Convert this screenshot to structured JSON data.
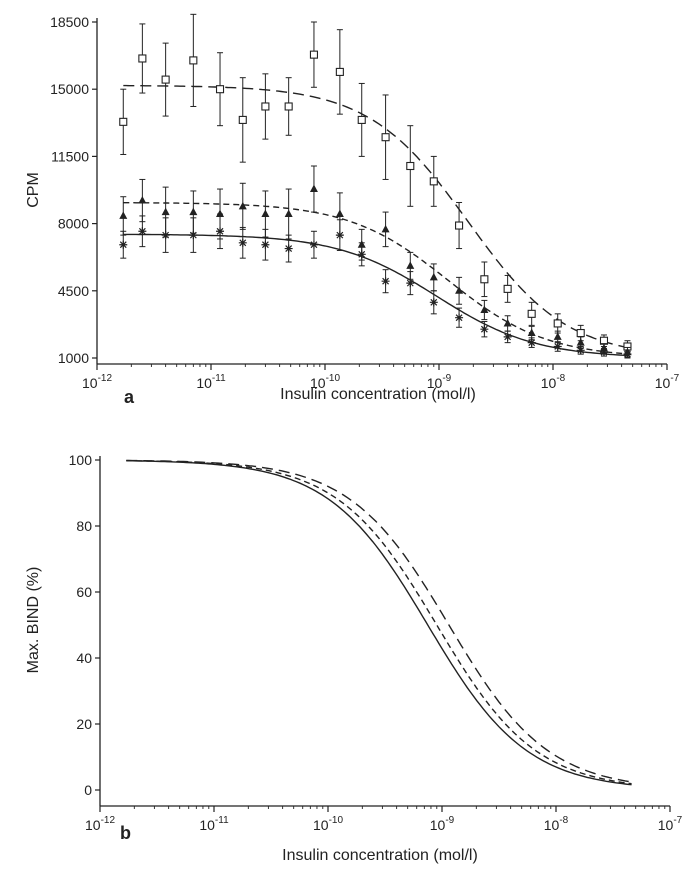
{
  "chart_data": [
    {
      "panel": "a",
      "type": "line",
      "xlabel": "Insulin concentration (mol/l)",
      "ylabel": "CPM",
      "xscale": "log",
      "xlim": [
        1e-12,
        1e-07
      ],
      "ylim": [
        1000,
        18500
      ],
      "xticks": [
        {
          "base": "10",
          "exp": "-12"
        },
        {
          "base": "10",
          "exp": "-11"
        },
        {
          "base": "10",
          "exp": "-10"
        },
        {
          "base": "10",
          "exp": "-9"
        },
        {
          "base": "10",
          "exp": "-8"
        },
        {
          "base": "10",
          "exp": "-7"
        }
      ],
      "yticks": [
        "1000",
        "4500",
        "8000",
        "11500",
        "15000",
        "18500"
      ],
      "series": [
        {
          "marker": "square",
          "line_style": "long-dash",
          "points": [
            {
              "x": 1.7e-12,
              "y": 13300,
              "err": 1700
            },
            {
              "x": 2.5e-12,
              "y": 16600,
              "err": 1800
            },
            {
              "x": 4e-12,
              "y": 15500,
              "err": 1900
            },
            {
              "x": 7e-12,
              "y": 16500,
              "err": 2400
            },
            {
              "x": 1.2e-11,
              "y": 15000,
              "err": 1900
            },
            {
              "x": 1.9e-11,
              "y": 13400,
              "err": 2200
            },
            {
              "x": 3e-11,
              "y": 14100,
              "err": 1700
            },
            {
              "x": 4.8e-11,
              "y": 14100,
              "err": 1500
            },
            {
              "x": 8e-11,
              "y": 16800,
              "err": 1700
            },
            {
              "x": 1.35e-10,
              "y": 15900,
              "err": 2200
            },
            {
              "x": 2.1e-10,
              "y": 13400,
              "err": 1900
            },
            {
              "x": 3.4e-10,
              "y": 12500,
              "err": 2200
            },
            {
              "x": 5.6e-10,
              "y": 11000,
              "err": 2100
            },
            {
              "x": 9e-10,
              "y": 10200,
              "err": 1300
            },
            {
              "x": 1.5e-09,
              "y": 7900,
              "err": 1200
            },
            {
              "x": 2.5e-09,
              "y": 5100,
              "err": 900
            },
            {
              "x": 4e-09,
              "y": 4600,
              "err": 700
            },
            {
              "x": 6.5e-09,
              "y": 3300,
              "err": 600
            },
            {
              "x": 1.1e-08,
              "y": 2800,
              "err": 500
            },
            {
              "x": 1.75e-08,
              "y": 2300,
              "err": 400
            },
            {
              "x": 2.8e-08,
              "y": 1900,
              "err": 300
            },
            {
              "x": 4.5e-08,
              "y": 1600,
              "err": 300
            }
          ],
          "curve": {
            "top": 15200,
            "bottom": 1000,
            "ec50": 1.8e-09,
            "hill": 1.0
          }
        },
        {
          "marker": "triangle",
          "line_style": "short-dash",
          "points": [
            {
              "x": 1.7e-12,
              "y": 8400,
              "err": 1000
            },
            {
              "x": 2.5e-12,
              "y": 9200,
              "err": 1100
            },
            {
              "x": 4e-12,
              "y": 8600,
              "err": 1300
            },
            {
              "x": 7e-12,
              "y": 8600,
              "err": 1100
            },
            {
              "x": 1.2e-11,
              "y": 8500,
              "err": 1300
            },
            {
              "x": 1.9e-11,
              "y": 8900,
              "err": 1200
            },
            {
              "x": 3e-11,
              "y": 8500,
              "err": 1200
            },
            {
              "x": 4.8e-11,
              "y": 8500,
              "err": 1300
            },
            {
              "x": 8e-11,
              "y": 9800,
              "err": 1200
            },
            {
              "x": 1.35e-10,
              "y": 8500,
              "err": 1100
            },
            {
              "x": 2.1e-10,
              "y": 6900,
              "err": 800
            },
            {
              "x": 3.4e-10,
              "y": 7700,
              "err": 900
            },
            {
              "x": 5.6e-10,
              "y": 5800,
              "err": 700
            },
            {
              "x": 9e-10,
              "y": 5200,
              "err": 700
            },
            {
              "x": 1.5e-09,
              "y": 4500,
              "err": 700
            },
            {
              "x": 2.5e-09,
              "y": 3500,
              "err": 500
            },
            {
              "x": 4e-09,
              "y": 2800,
              "err": 400
            },
            {
              "x": 6.5e-09,
              "y": 2300,
              "err": 350
            },
            {
              "x": 1.1e-08,
              "y": 2100,
              "err": 300
            },
            {
              "x": 1.75e-08,
              "y": 1800,
              "err": 300
            },
            {
              "x": 2.8e-08,
              "y": 1500,
              "err": 250
            },
            {
              "x": 4.5e-08,
              "y": 1300,
              "err": 250
            }
          ],
          "curve": {
            "top": 9100,
            "bottom": 1000,
            "ec50": 1.2e-09,
            "hill": 1.0
          }
        },
        {
          "marker": "asterisk",
          "line_style": "solid",
          "points": [
            {
              "x": 1.7e-12,
              "y": 6900,
              "err": 700
            },
            {
              "x": 2.5e-12,
              "y": 7600,
              "err": 800
            },
            {
              "x": 4e-12,
              "y": 7400,
              "err": 900
            },
            {
              "x": 7e-12,
              "y": 7400,
              "err": 900
            },
            {
              "x": 1.2e-11,
              "y": 7600,
              "err": 900
            },
            {
              "x": 1.9e-11,
              "y": 7000,
              "err": 800
            },
            {
              "x": 3e-11,
              "y": 6900,
              "err": 800
            },
            {
              "x": 4.8e-11,
              "y": 6700,
              "err": 700
            },
            {
              "x": 8e-11,
              "y": 6900,
              "err": 700
            },
            {
              "x": 1.35e-10,
              "y": 7400,
              "err": 800
            },
            {
              "x": 2.1e-10,
              "y": 6400,
              "err": 600
            },
            {
              "x": 3.4e-10,
              "y": 5000,
              "err": 600
            },
            {
              "x": 5.6e-10,
              "y": 4900,
              "err": 600
            },
            {
              "x": 9e-10,
              "y": 3900,
              "err": 600
            },
            {
              "x": 1.5e-09,
              "y": 3100,
              "err": 500
            },
            {
              "x": 2.5e-09,
              "y": 2500,
              "err": 400
            },
            {
              "x": 4e-09,
              "y": 2100,
              "err": 300
            },
            {
              "x": 6.5e-09,
              "y": 1800,
              "err": 250
            },
            {
              "x": 1.1e-08,
              "y": 1600,
              "err": 250
            },
            {
              "x": 1.75e-08,
              "y": 1400,
              "err": 200
            },
            {
              "x": 2.8e-08,
              "y": 1300,
              "err": 200
            },
            {
              "x": 4.5e-08,
              "y": 1200,
              "err": 200
            }
          ],
          "curve": {
            "top": 7450,
            "bottom": 1000,
            "ec50": 9.5e-10,
            "hill": 1.0
          }
        }
      ]
    },
    {
      "panel": "b",
      "type": "line",
      "xlabel": "Insulin concentration (mol/l)",
      "ylabel": "Max. BIND (%)",
      "xscale": "log",
      "xlim": [
        1e-12,
        1e-07
      ],
      "ylim": [
        0,
        100
      ],
      "xticks": [
        {
          "base": "10",
          "exp": "-12"
        },
        {
          "base": "10",
          "exp": "-11"
        },
        {
          "base": "10",
          "exp": "-10"
        },
        {
          "base": "10",
          "exp": "-9"
        },
        {
          "base": "10",
          "exp": "-8"
        },
        {
          "base": "10",
          "exp": "-7"
        }
      ],
      "yticks": [
        "0",
        "20",
        "40",
        "60",
        "80",
        "100"
      ],
      "series": [
        {
          "line_style": "solid",
          "curve": {
            "top": 100,
            "bottom": 0,
            "ec50": 7.5e-10,
            "hill": 1.0
          }
        },
        {
          "line_style": "short-dash",
          "curve": {
            "top": 100,
            "bottom": 0,
            "ec50": 9e-10,
            "hill": 1.0
          }
        },
        {
          "line_style": "long-dash",
          "curve": {
            "top": 100,
            "bottom": 0,
            "ec50": 1.15e-09,
            "hill": 1.0
          }
        }
      ]
    }
  ]
}
